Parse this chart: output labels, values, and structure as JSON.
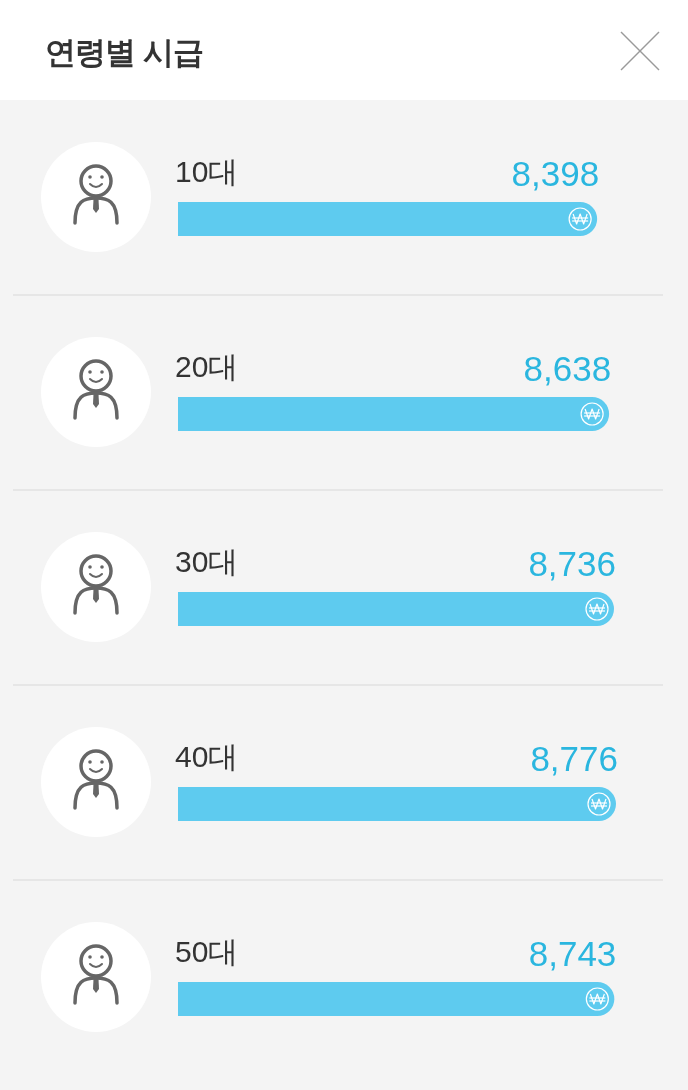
{
  "chart_data": {
    "type": "bar",
    "orientation": "horizontal",
    "title": "연령별 시급",
    "categories": [
      "10대",
      "20대",
      "30대",
      "40대",
      "50대"
    ],
    "values": [
      8398,
      8638,
      8736,
      8776,
      8743
    ],
    "value_labels": [
      "8,398",
      "8,638",
      "8,736",
      "8,776",
      "8,743"
    ],
    "color": "#5ecbef"
  }
}
